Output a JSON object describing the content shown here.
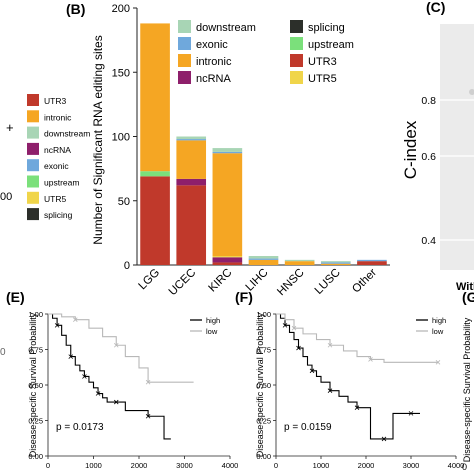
{
  "left_legend": {
    "items": [
      {
        "label": "UTR3",
        "color": "#c0392b"
      },
      {
        "label": "intronic",
        "color": "#f5a623"
      },
      {
        "label": "downstream",
        "color": "#a8d5b5"
      },
      {
        "label": "ncRNA",
        "color": "#8e1f6b"
      },
      {
        "label": "exonic",
        "color": "#6fa8dc"
      },
      {
        "label": "upstream",
        "color": "#7be07b"
      },
      {
        "label": "UTR5",
        "color": "#f0d54a"
      },
      {
        "label": "splicing",
        "color": "#2c2f2a"
      }
    ],
    "plus_sign": "+",
    "tick_fragment": "00",
    "bottom_fragment": "0"
  },
  "panel_b": {
    "letter": "(B)",
    "legend": [
      {
        "label": "downstream",
        "color": "#a8d5b5"
      },
      {
        "label": "splicing",
        "color": "#2c2f2a"
      },
      {
        "label": "exonic",
        "color": "#6fa8dc"
      },
      {
        "label": "upstream",
        "color": "#7be07b"
      },
      {
        "label": "intronic",
        "color": "#f5a623"
      },
      {
        "label": "UTR3",
        "color": "#c0392b"
      },
      {
        "label": "ncRNA",
        "color": "#8e1f6b"
      },
      {
        "label": "UTR5",
        "color": "#f0d54a"
      }
    ]
  },
  "panel_c": {
    "letter": "(C)",
    "ylabel": "C-index",
    "yticks": [
      "0.8",
      "0.6",
      "0.4"
    ],
    "xtick_fragment": "Witl"
  },
  "panel_e": {
    "letter": "(E)",
    "ylabel": "Disease-specific Survival Probability",
    "pvalue": "p = 0.0173"
  },
  "panel_f": {
    "letter": "(F)",
    "ylabel": "Disease-specific Survival Probability",
    "pvalue": "p = 0.0159"
  },
  "panel_g": {
    "letter": "(G",
    "ylabel_fragment": "Disease-specific Survival Probability"
  },
  "chart_data": [
    {
      "type": "bar",
      "ylabel": "Number of Significant RNA editing sites",
      "ylim": [
        0,
        200
      ],
      "yticks": [
        0,
        50,
        100,
        150,
        200
      ],
      "categories": [
        "LGG",
        "UCEC",
        "KIRC",
        "LIHC",
        "HNSC",
        "LUSC",
        "Other"
      ],
      "stacked": true,
      "series": [
        {
          "name": "UTR3",
          "color": "#c0392b",
          "values": [
            69,
            62,
            2,
            0,
            0,
            0,
            3
          ]
        },
        {
          "name": "ncRNA",
          "color": "#8e1f6b",
          "values": [
            0,
            5,
            4,
            0,
            0,
            0,
            0
          ]
        },
        {
          "name": "UTR5",
          "color": "#f0d54a",
          "values": [
            0,
            0,
            1,
            0,
            0,
            0,
            0
          ]
        },
        {
          "name": "upstream",
          "color": "#7be07b",
          "values": [
            4,
            0,
            0,
            0,
            0,
            0,
            0
          ]
        },
        {
          "name": "intronic",
          "color": "#f5a623",
          "values": [
            115,
            30,
            80,
            4,
            3,
            1,
            0
          ]
        },
        {
          "name": "exonic",
          "color": "#6fa8dc",
          "values": [
            0,
            1,
            1,
            1,
            0,
            1,
            1
          ]
        },
        {
          "name": "downstream",
          "color": "#a8d5b5",
          "values": [
            0,
            2,
            3,
            2,
            1,
            1,
            0
          ]
        },
        {
          "name": "splicing",
          "color": "#2c2f2a",
          "values": [
            0,
            0,
            0,
            0,
            0,
            0,
            0
          ]
        }
      ],
      "legend": "top-right"
    },
    {
      "type": "line",
      "kind": "kaplan-meier",
      "xlim": [
        0,
        4000
      ],
      "ylim": [
        0,
        1
      ],
      "xticks": [
        0,
        1000,
        2000,
        3000,
        4000
      ],
      "yticks": [
        0.0,
        0.25,
        0.5,
        0.75,
        1.0
      ],
      "legend": "top-right",
      "series": [
        {
          "name": "high",
          "color": "#000000",
          "x": [
            0,
            100,
            200,
            300,
            400,
            500,
            600,
            700,
            800,
            900,
            1000,
            1100,
            1200,
            1300,
            1500,
            1700,
            2000,
            2200,
            2550,
            2700
          ],
          "y": [
            1.0,
            0.97,
            0.92,
            0.85,
            0.78,
            0.7,
            0.64,
            0.6,
            0.56,
            0.52,
            0.48,
            0.44,
            0.41,
            0.38,
            0.38,
            0.32,
            0.32,
            0.28,
            0.12,
            0.12
          ]
        },
        {
          "name": "low",
          "color": "#b8b8b8",
          "x": [
            0,
            300,
            600,
            900,
            1200,
            1500,
            1700,
            2000,
            2200,
            2600,
            3200
          ],
          "y": [
            1.0,
            0.98,
            0.96,
            0.9,
            0.84,
            0.78,
            0.7,
            0.62,
            0.52,
            0.52,
            0.52
          ]
        }
      ]
    },
    {
      "type": "line",
      "kind": "kaplan-meier",
      "xlim": [
        0,
        4000
      ],
      "ylim": [
        0,
        1
      ],
      "xticks": [
        0,
        1000,
        2000,
        3000,
        4000
      ],
      "yticks": [
        0.0,
        0.25,
        0.5,
        0.75,
        1.0
      ],
      "legend": "top-right",
      "series": [
        {
          "name": "high",
          "color": "#000000",
          "x": [
            0,
            100,
            200,
            300,
            400,
            500,
            600,
            700,
            800,
            900,
            1000,
            1200,
            1400,
            1600,
            1800,
            2000,
            2100,
            2400,
            2600,
            2800,
            3000,
            3200
          ],
          "y": [
            1.0,
            0.97,
            0.92,
            0.87,
            0.82,
            0.76,
            0.7,
            0.64,
            0.6,
            0.56,
            0.52,
            0.46,
            0.42,
            0.38,
            0.34,
            0.34,
            0.12,
            0.12,
            0.3,
            0.3,
            0.3,
            0.3
          ]
        },
        {
          "name": "low",
          "color": "#b8b8b8",
          "x": [
            0,
            200,
            400,
            600,
            900,
            1200,
            1500,
            1800,
            2100,
            2400,
            3000,
            3600
          ],
          "y": [
            1.0,
            0.96,
            0.9,
            0.86,
            0.82,
            0.78,
            0.74,
            0.7,
            0.68,
            0.66,
            0.66,
            0.66
          ]
        }
      ]
    },
    {
      "type": "line",
      "kind": "partial-axis",
      "xticks": [
        0
      ],
      "xlim": [
        0,
        4000
      ]
    }
  ]
}
